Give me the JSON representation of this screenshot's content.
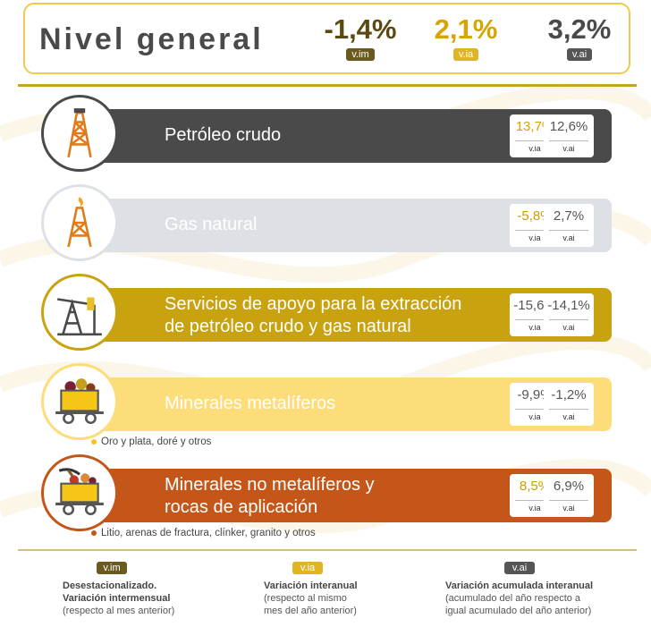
{
  "header": {
    "title": "Nivel general",
    "metrics": [
      {
        "value": "-1,4%",
        "tag": "v.im"
      },
      {
        "value": "2,1%",
        "tag": "v.ia"
      },
      {
        "value": "3,2%",
        "tag": "v.ai"
      }
    ]
  },
  "rows": [
    {
      "label_1": "Petróleo crudo",
      "label_2": "",
      "via": "13,7%",
      "vai": "12,6%",
      "tag_ia": "v.ia",
      "tag_ai": "v.ai",
      "icon": "oil-derrick-icon",
      "color": "#4a4a4a"
    },
    {
      "label_1": "Gas natural",
      "label_2": "",
      "via": "-5,8%",
      "vai": "2,7%",
      "tag_ia": "v.ia",
      "tag_ai": "v.ai",
      "icon": "gas-flare-tower-icon",
      "color": "#dde1e6"
    },
    {
      "label_1": "Servicios de apoyo para la extracción",
      "label_2": "de petróleo crudo y gas natural",
      "via": "-15,6%",
      "vai": "-14,1%",
      "tag_ia": "v.ia",
      "tag_ai": "v.ai",
      "icon": "pumpjack-icon",
      "color": "#c9a210"
    },
    {
      "label_1": "Minerales metalíferos",
      "label_2": "",
      "via": "-9,9%",
      "vai": "-1,2%",
      "tag_ia": "v.ia",
      "tag_ai": "v.ai",
      "icon": "mine-cart-icon",
      "color": "#fddc7a",
      "note": "Oro y plata, doré y otros"
    },
    {
      "label_1": "Minerales no metalíferos y",
      "label_2": "rocas de aplicación",
      "via": "8,5%",
      "vai": "6,9%",
      "tag_ia": "v.ia",
      "tag_ai": "v.ai",
      "icon": "mine-cart-pickaxe-icon",
      "color": "#c4561a",
      "note": "Litio, arenas de fractura, clínker, granito y otros"
    }
  ],
  "legend": [
    {
      "tag": "v.im",
      "line1": "Desestacionalizado.",
      "line2": "Variación intermensual",
      "line3": "(respecto al mes anterior)"
    },
    {
      "tag": "v.ia",
      "line1": "Variación interanual",
      "line2": "(respecto al mismo",
      "line3": "mes del año anterior)"
    },
    {
      "tag": "v.ai",
      "line1": "Variación acumulada interanual",
      "line2": "(acumulado del año respecto a",
      "line3": "igual acumulado del año anterior)"
    }
  ]
}
